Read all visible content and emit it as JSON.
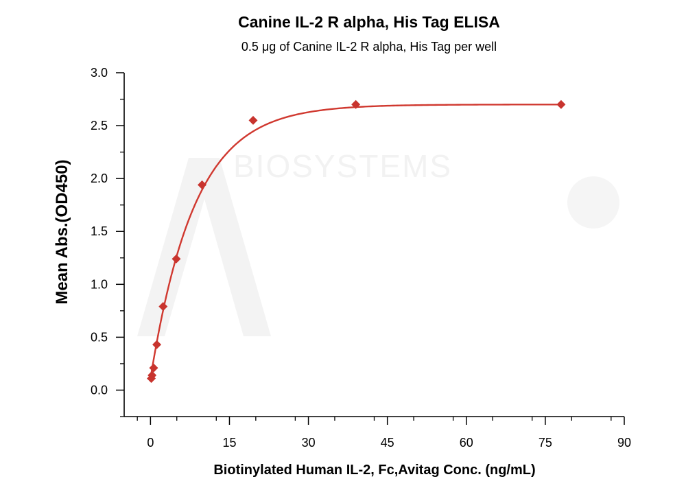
{
  "chart_data": {
    "type": "scatter",
    "title": "Canine IL-2 R alpha, His Tag ELISA",
    "subtitle": "0.5 μg of Canine IL-2 R alpha, His Tag per well",
    "xlabel": "Biotinylated Human IL-2, Fc,Avitag Conc. (ng/mL)",
    "ylabel": "Mean Abs.(OD450)",
    "xlim": [
      -5,
      90
    ],
    "ylim": [
      -0.25,
      3.0
    ],
    "xticks": [
      0,
      15,
      30,
      45,
      60,
      75,
      90
    ],
    "yticks": [
      0.0,
      0.5,
      1.0,
      1.5,
      2.0,
      2.5,
      3.0
    ],
    "series": [
      {
        "x": [
          0.15,
          0.3,
          0.6,
          1.2,
          2.4,
          4.9,
          9.8,
          19.5,
          39,
          78
        ],
        "y": [
          0.11,
          0.14,
          0.21,
          0.43,
          0.79,
          1.24,
          1.94,
          2.55,
          2.7,
          2.7
        ],
        "marker": "diamond",
        "color": "#c8342e",
        "fit_curve": true,
        "curve_color": "#d0382f"
      }
    ],
    "grid": false,
    "legend": "none"
  },
  "watermark": {
    "brand_text": "BIOSYSTEMS"
  }
}
